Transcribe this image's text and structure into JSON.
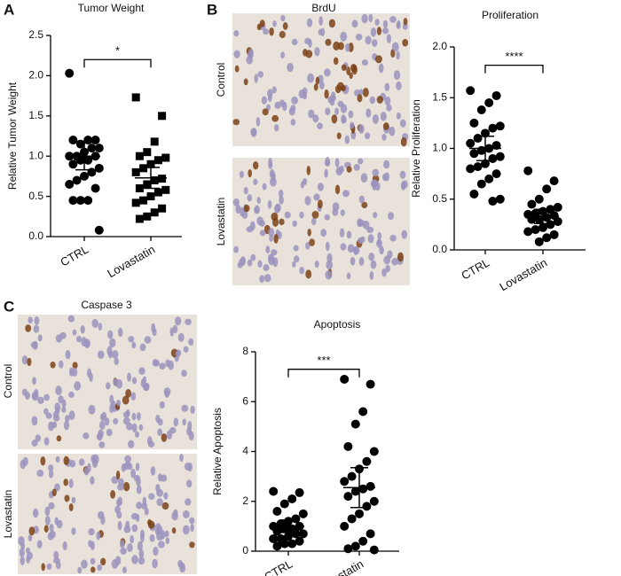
{
  "chart_data": [
    {
      "type": "strip",
      "title": "Tumor Weight",
      "y_label": "Relative Tumor Weight",
      "categories": [
        "CTRL",
        "Lovastatin"
      ],
      "series": [
        {
          "marker": "circle",
          "color": "#000000",
          "values": [
            2.03,
            1.2,
            1.2,
            1.15,
            1.2,
            1.1,
            1.1,
            1.05,
            1.0,
            1.0,
            1.0,
            0.95,
            0.95,
            0.9,
            0.85,
            0.8,
            0.75,
            0.7,
            0.65,
            0.6,
            0.45,
            0.45,
            0.45,
            0.08
          ],
          "mean": 1.0,
          "error": 0.17
        },
        {
          "marker": "square",
          "color": "#000000",
          "values": [
            1.73,
            1.5,
            1.18,
            1.05,
            1.0,
            0.98,
            0.95,
            0.9,
            0.85,
            0.8,
            0.72,
            0.7,
            0.65,
            0.6,
            0.58,
            0.55,
            0.5,
            0.45,
            0.42,
            0.35,
            0.3,
            0.25,
            0.22
          ],
          "mean": 0.73,
          "error": 0.13
        }
      ],
      "ylim": [
        0,
        2.5
      ],
      "yticks": [
        {
          "value": 0,
          "label": "0.0"
        },
        0.5,
        {
          "value": 1,
          "label": "1.0"
        },
        1.5,
        {
          "value": 2,
          "label": "2.0"
        },
        2.5
      ],
      "annotation": {
        "text": "*",
        "bracket_y": 2.2
      }
    },
    {
      "type": "strip",
      "title": "Proliferation",
      "y_label": "Relative Proliferation",
      "categories": [
        "CTRL",
        "Lovastatin"
      ],
      "series": [
        {
          "marker": "circle",
          "color": "#000000",
          "values": [
            1.57,
            1.52,
            1.45,
            1.38,
            1.25,
            1.22,
            1.2,
            1.15,
            1.1,
            1.05,
            1.03,
            1.0,
            0.98,
            0.95,
            0.92,
            0.9,
            0.85,
            0.82,
            0.8,
            0.75,
            0.7,
            0.65,
            0.55,
            0.5,
            0.48
          ],
          "mean": 1.0,
          "error": 0.12
        },
        {
          "marker": "circle",
          "color": "#000000",
          "values": [
            0.78,
            0.68,
            0.6,
            0.5,
            0.45,
            0.42,
            0.4,
            0.38,
            0.36,
            0.35,
            0.34,
            0.32,
            0.3,
            0.3,
            0.28,
            0.25,
            0.22,
            0.2,
            0.18,
            0.15,
            0.12,
            0.08
          ],
          "mean": 0.33,
          "error": 0.07
        }
      ],
      "ylim": [
        0,
        2
      ],
      "yticks": [
        {
          "value": 0,
          "label": "0.0"
        },
        0.5,
        {
          "value": 1,
          "label": "1.0"
        },
        1.5,
        {
          "value": 2,
          "label": "2.0"
        }
      ],
      "annotation": {
        "text": "****",
        "bracket_y": 1.82
      }
    },
    {
      "type": "strip",
      "title": "Apoptosis",
      "y_label": "Relative Apoptosis",
      "categories": [
        "CTRL",
        "Lovastatin"
      ],
      "series": [
        {
          "marker": "circle",
          "color": "#000000",
          "values": [
            2.4,
            2.35,
            2.1,
            1.9,
            1.6,
            1.5,
            1.3,
            1.2,
            1.1,
            1.0,
            1.0,
            0.9,
            0.9,
            0.8,
            0.7,
            0.7,
            0.6,
            0.5,
            0.5,
            0.4,
            0.3,
            0.3,
            0.2
          ],
          "mean": 1.0,
          "error": 0.25
        },
        {
          "marker": "circle",
          "color": "#000000",
          "values": [
            6.9,
            6.7,
            5.6,
            5.1,
            4.2,
            4.0,
            3.6,
            3.3,
            3.0,
            2.8,
            2.6,
            2.5,
            2.4,
            2.2,
            2.0,
            1.8,
            1.5,
            1.3,
            1.0,
            0.7,
            0.4,
            0.2,
            0.1,
            0.05
          ],
          "mean": 2.55,
          "error": 0.8
        }
      ],
      "ylim": [
        0,
        8
      ],
      "yticks": [
        0,
        2,
        4,
        6,
        8
      ],
      "annotation": {
        "text": "***",
        "bracket_y": 7.3
      }
    }
  ],
  "panel_labels": [
    "A",
    "B",
    "C"
  ],
  "micrographs": [
    {
      "stain": "BrdU",
      "rows": [
        "Control",
        "Lovastatin"
      ]
    },
    {
      "stain": "Caspase 3",
      "rows": [
        "Control",
        "Lovastatin"
      ]
    }
  ]
}
